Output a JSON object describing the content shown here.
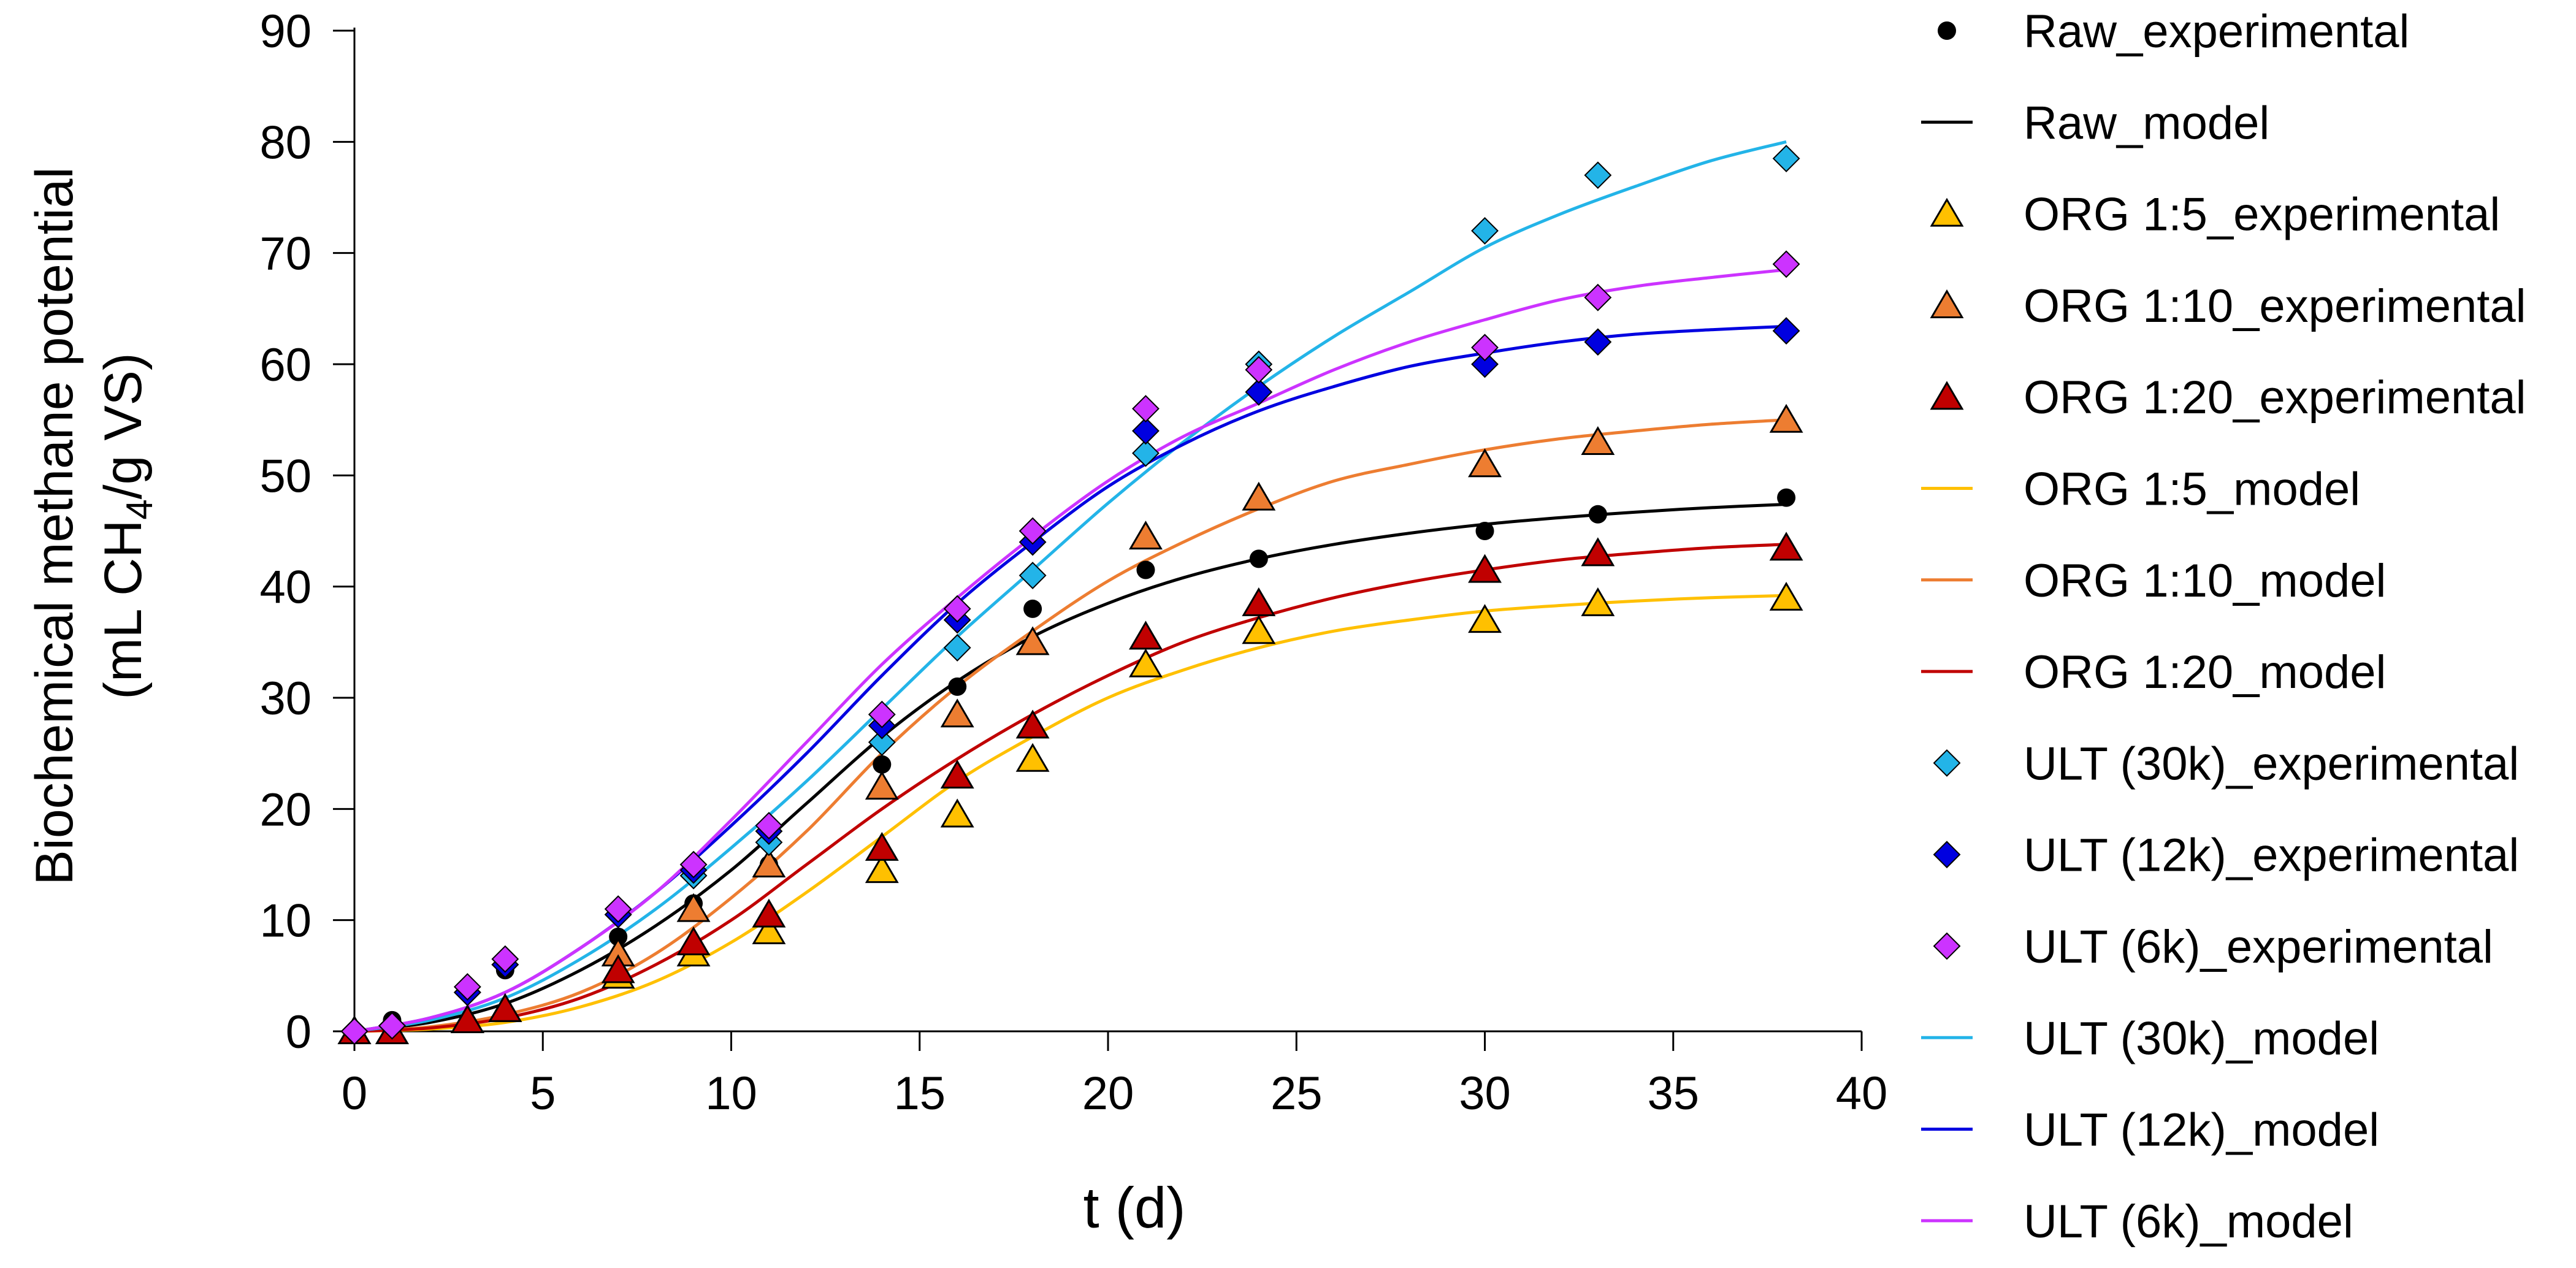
{
  "chart_data": {
    "type": "scatter",
    "title": "",
    "xlabel_main": "t",
    "xlabel_unit": " (d)",
    "ylabel_line1": "Biochemical methane potential",
    "ylabel_line2_pre": "(mL CH",
    "ylabel_line2_sub": "4",
    "ylabel_line2_post": "/g VS)",
    "xlim": [
      0,
      40
    ],
    "ylim": [
      0,
      90
    ],
    "xticks": [
      "0",
      "5",
      "10",
      "15",
      "20",
      "25",
      "30",
      "35",
      "40"
    ],
    "yticks": [
      "0",
      "10",
      "20",
      "30",
      "40",
      "50",
      "60",
      "70",
      "80",
      "90"
    ],
    "grid": false,
    "legend_position": "right",
    "experimental": [
      {
        "name": "Raw_experimental",
        "marker": "circle",
        "color": "#000000",
        "x": [
          0,
          1,
          3,
          4,
          7,
          9,
          11,
          14,
          16,
          18,
          21,
          24,
          30,
          33,
          38
        ],
        "y": [
          0,
          1,
          4,
          5.5,
          8.5,
          11.5,
          15,
          24,
          31,
          38,
          41.5,
          42.5,
          45,
          46.5,
          48
        ]
      },
      {
        "name": "ORG 1:5_experimental",
        "marker": "triangle",
        "color": "#FFC000",
        "x": [
          0,
          1,
          3,
          4,
          7,
          9,
          11,
          14,
          16,
          18,
          21,
          24,
          30,
          33,
          38
        ],
        "y": [
          0,
          0,
          1,
          2,
          5,
          7,
          9,
          14.5,
          19.5,
          24.5,
          33,
          36,
          37,
          38.5,
          39
        ]
      },
      {
        "name": "ORG 1:10_experimental",
        "marker": "triangle",
        "color": "#ED7D31",
        "x": [
          0,
          1,
          3,
          4,
          7,
          9,
          11,
          14,
          16,
          18,
          21,
          24,
          30,
          33,
          38
        ],
        "y": [
          0,
          0,
          1,
          2,
          7,
          11,
          15,
          22,
          28.5,
          35,
          44.5,
          48,
          51,
          53,
          55
        ]
      },
      {
        "name": "ORG 1:20_experimental",
        "marker": "triangle",
        "color": "#C00000",
        "x": [
          0,
          1,
          3,
          4,
          7,
          9,
          11,
          14,
          16,
          18,
          21,
          24,
          30,
          33,
          38
        ],
        "y": [
          0,
          0,
          1,
          2,
          5.5,
          8,
          10.5,
          16.5,
          23,
          27.5,
          35.5,
          38.5,
          41.5,
          43,
          43.5
        ]
      },
      {
        "name": "ULT (30k)_experimental",
        "marker": "diamond",
        "color": "#23B4E8",
        "x": [
          0,
          1,
          3,
          4,
          7,
          9,
          11,
          14,
          16,
          18,
          21,
          24,
          30,
          33,
          38
        ],
        "y": [
          0,
          0.5,
          3.5,
          6,
          10.5,
          14,
          17,
          26,
          34.5,
          41,
          52,
          60,
          72,
          77,
          78.5
        ]
      },
      {
        "name": "ULT (12k)_experimental",
        "marker": "diamond",
        "color": "#0000E0",
        "x": [
          0,
          1,
          3,
          4,
          7,
          9,
          11,
          14,
          16,
          18,
          21,
          24,
          30,
          33,
          38
        ],
        "y": [
          0,
          0.5,
          3.5,
          6,
          10.5,
          14.5,
          18,
          27.5,
          37,
          44,
          54,
          57.5,
          60,
          62,
          63
        ]
      },
      {
        "name": "ULT (6k)_experimental",
        "marker": "diamond",
        "color": "#CC33FF",
        "x": [
          0,
          1,
          3,
          4,
          7,
          9,
          11,
          14,
          16,
          18,
          21,
          24,
          30,
          33,
          38
        ],
        "y": [
          0,
          0.5,
          4,
          6.5,
          11,
          15,
          18.5,
          28.5,
          38,
          45,
          56,
          59.5,
          61.5,
          66,
          69
        ]
      }
    ],
    "models": [
      {
        "name": "Raw_model",
        "color": "#000000",
        "x": [
          0,
          2,
          4,
          6,
          8,
          10,
          12,
          14,
          16,
          18,
          20,
          22,
          24,
          26,
          28,
          30,
          32,
          34,
          36,
          38
        ],
        "y": [
          0,
          0.8,
          2.5,
          5.5,
          9.5,
          14.5,
          20.5,
          26.5,
          31.5,
          35.5,
          38.5,
          40.8,
          42.5,
          43.8,
          44.8,
          45.6,
          46.2,
          46.7,
          47.1,
          47.4
        ]
      },
      {
        "name": "ORG 1:5_model",
        "color": "#FFC000",
        "x": [
          0,
          2,
          4,
          6,
          8,
          10,
          12,
          14,
          16,
          18,
          20,
          22,
          24,
          26,
          28,
          30,
          32,
          34,
          36,
          38
        ],
        "y": [
          0,
          0.2,
          0.8,
          2.2,
          4.5,
          8,
          12.5,
          17.5,
          22.5,
          26.5,
          30,
          32.5,
          34.5,
          36,
          37,
          37.8,
          38.3,
          38.7,
          39,
          39.2
        ]
      },
      {
        "name": "ORG 1:10_model",
        "color": "#ED7D31",
        "x": [
          0,
          2,
          4,
          6,
          8,
          10,
          12,
          14,
          16,
          18,
          20,
          22,
          24,
          26,
          28,
          30,
          32,
          34,
          36,
          38
        ],
        "y": [
          0,
          0.4,
          1.5,
          3.5,
          7,
          12,
          18,
          25,
          31,
          36,
          40.5,
          44,
          47,
          49.5,
          51,
          52.3,
          53.3,
          54,
          54.6,
          55
        ]
      },
      {
        "name": "ORG 1:20_model",
        "color": "#C00000",
        "x": [
          0,
          2,
          4,
          6,
          8,
          10,
          12,
          14,
          16,
          18,
          20,
          22,
          24,
          26,
          28,
          30,
          32,
          34,
          36,
          38
        ],
        "y": [
          0,
          0.3,
          1.2,
          3,
          6,
          10,
          15,
          20,
          24.5,
          28.5,
          32,
          35,
          37.2,
          39,
          40.4,
          41.5,
          42.4,
          43,
          43.5,
          43.8
        ]
      },
      {
        "name": "ULT (30k)_model",
        "color": "#23B4E8",
        "x": [
          0,
          2,
          4,
          6,
          8,
          10,
          12,
          14,
          16,
          18,
          20,
          22,
          24,
          26,
          28,
          30,
          32,
          34,
          36,
          38
        ],
        "y": [
          0,
          1,
          3,
          6.5,
          11,
          16.5,
          22.5,
          29,
          35.5,
          41.5,
          47.5,
          53,
          58,
          62.5,
          66.5,
          70.5,
          73.5,
          76,
          78.3,
          80
        ]
      },
      {
        "name": "ULT (12k)_model",
        "color": "#0000E0",
        "x": [
          0,
          2,
          4,
          6,
          8,
          10,
          12,
          14,
          16,
          18,
          20,
          22,
          24,
          26,
          28,
          30,
          32,
          34,
          36,
          38
        ],
        "y": [
          0,
          1.2,
          3.5,
          7.5,
          12.5,
          18.5,
          25,
          32,
          38.5,
          44,
          49,
          52.8,
          55.8,
          58,
          59.8,
          61,
          62,
          62.7,
          63.1,
          63.4
        ]
      },
      {
        "name": "ULT (6k)_model",
        "color": "#CC33FF",
        "x": [
          0,
          2,
          4,
          6,
          8,
          10,
          12,
          14,
          16,
          18,
          20,
          22,
          24,
          26,
          28,
          30,
          32,
          34,
          36,
          38
        ],
        "y": [
          0,
          1.2,
          3.5,
          7.5,
          12.5,
          19,
          26,
          33,
          39,
          44.5,
          49.5,
          53.5,
          56.5,
          59.5,
          62,
          64,
          65.8,
          67,
          67.8,
          68.5
        ]
      }
    ],
    "legend": [
      {
        "label": "Raw_experimental",
        "kind": "marker",
        "marker": "circle",
        "color": "#000000"
      },
      {
        "label": "Raw_model",
        "kind": "line",
        "color": "#000000"
      },
      {
        "label": "ORG 1:5_experimental",
        "kind": "marker",
        "marker": "triangle",
        "color": "#FFC000"
      },
      {
        "label": "ORG 1:10_experimental",
        "kind": "marker",
        "marker": "triangle",
        "color": "#ED7D31"
      },
      {
        "label": "ORG 1:20_experimental",
        "kind": "marker",
        "marker": "triangle",
        "color": "#C00000"
      },
      {
        "label": "ORG 1:5_model",
        "kind": "line",
        "color": "#FFC000"
      },
      {
        "label": "ORG 1:10_model",
        "kind": "line",
        "color": "#ED7D31"
      },
      {
        "label": "ORG 1:20_model",
        "kind": "line",
        "color": "#C00000"
      },
      {
        "label": "ULT (30k)_experimental",
        "kind": "marker",
        "marker": "diamond",
        "color": "#23B4E8"
      },
      {
        "label": "ULT (12k)_experimental",
        "kind": "marker",
        "marker": "diamond",
        "color": "#0000E0"
      },
      {
        "label": "ULT (6k)_experimental",
        "kind": "marker",
        "marker": "diamond",
        "color": "#CC33FF"
      },
      {
        "label": "ULT (30k)_model",
        "kind": "line",
        "color": "#23B4E8"
      },
      {
        "label": "ULT (12k)_model",
        "kind": "line",
        "color": "#0000E0"
      },
      {
        "label": "ULT (6k)_model",
        "kind": "line",
        "color": "#CC33FF"
      }
    ]
  }
}
